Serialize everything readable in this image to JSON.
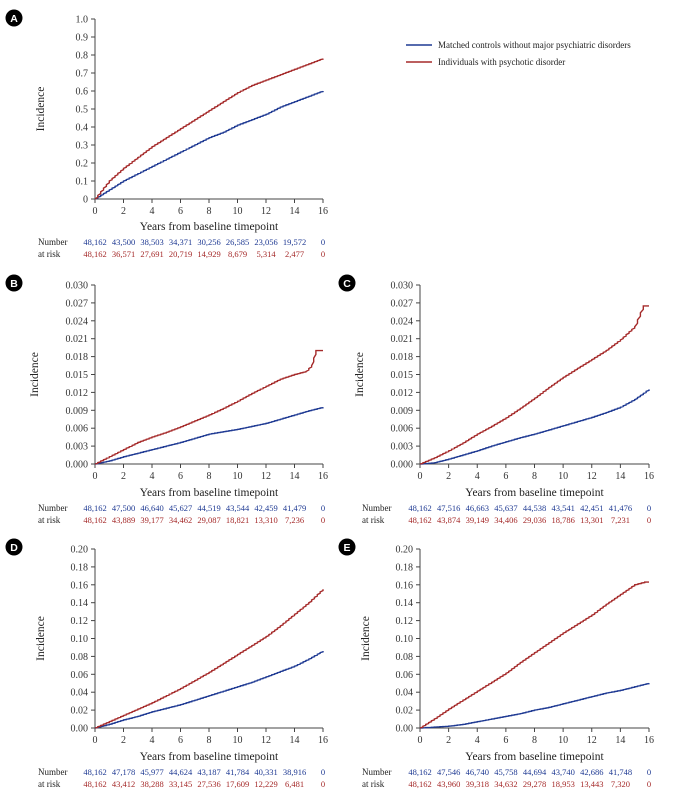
{
  "legend": {
    "position": "top-right",
    "entries": [
      {
        "label": "Matched controls without major psychiatric disorders",
        "color": "#1f3a93"
      },
      {
        "label": "Individuals with psychotic disorder",
        "color": "#a52a2a"
      }
    ]
  },
  "colors": {
    "controls": "#1f3a93",
    "psychotic": "#a52a2a",
    "axis": "#444444",
    "badge": "#000000"
  },
  "risk_table_labels": {
    "line1": "Number",
    "line2": "at risk"
  },
  "chart_data": [
    {
      "panel": "A",
      "type": "line",
      "xlabel": "Years from baseline timepoint",
      "ylabel": "Incidence",
      "xlim": [
        0,
        16
      ],
      "ylim": [
        0,
        1.0
      ],
      "xticks": [
        "0",
        "2",
        "4",
        "6",
        "8",
        "10",
        "12",
        "14",
        "16"
      ],
      "yticks": [
        "0",
        "0.1",
        "0.2",
        "0.3",
        "0.4",
        "0.5",
        "0.6",
        "0.7",
        "0.8",
        "0.9",
        "1.0"
      ],
      "series": [
        {
          "name": "Matched controls without major psychiatric disorders",
          "color": "#1f3a93",
          "x": [
            0,
            1,
            2,
            3,
            4,
            5,
            6,
            7,
            8,
            9,
            10,
            11,
            12,
            13,
            14,
            15,
            16
          ],
          "y": [
            0,
            0.05,
            0.1,
            0.14,
            0.18,
            0.22,
            0.26,
            0.3,
            0.34,
            0.37,
            0.41,
            0.44,
            0.47,
            0.51,
            0.54,
            0.57,
            0.6
          ]
        },
        {
          "name": "Individuals with psychotic disorder",
          "color": "#a52a2a",
          "x": [
            0,
            1,
            2,
            3,
            4,
            5,
            6,
            7,
            8,
            9,
            10,
            11,
            12,
            13,
            14,
            15,
            16
          ],
          "y": [
            0,
            0.1,
            0.17,
            0.23,
            0.29,
            0.34,
            0.39,
            0.44,
            0.49,
            0.54,
            0.59,
            0.63,
            0.66,
            0.69,
            0.72,
            0.75,
            0.78
          ]
        }
      ],
      "risk": {
        "controls": [
          "48,162",
          "43,500",
          "38,503",
          "34,371",
          "30,256",
          "26,585",
          "23,056",
          "19,572",
          "0"
        ],
        "psychotic": [
          "48,162",
          "36,571",
          "27,691",
          "20,719",
          "14,929",
          "8,679",
          "5,314",
          "2,477",
          "0"
        ]
      }
    },
    {
      "panel": "B",
      "type": "line",
      "xlabel": "Years from baseline timepoint",
      "ylabel": "Incidence",
      "xlim": [
        0,
        16
      ],
      "ylim": [
        0,
        0.03
      ],
      "xticks": [
        "0",
        "2",
        "4",
        "6",
        "8",
        "10",
        "12",
        "14",
        "16"
      ],
      "yticks": [
        "0.000",
        "0.003",
        "0.006",
        "0.009",
        "0.012",
        "0.015",
        "0.018",
        "0.021",
        "0.024",
        "0.027",
        "0.030"
      ],
      "series": [
        {
          "name": "Matched controls without major psychiatric disorders",
          "color": "#1f3a93",
          "x": [
            0,
            1,
            2,
            3,
            4,
            5,
            6,
            7,
            8,
            9,
            10,
            11,
            12,
            13,
            14,
            15,
            16
          ],
          "y": [
            0,
            0.0005,
            0.0012,
            0.0018,
            0.0024,
            0.003,
            0.0036,
            0.0043,
            0.005,
            0.0054,
            0.0058,
            0.0063,
            0.0068,
            0.0075,
            0.0082,
            0.0089,
            0.0095
          ]
        },
        {
          "name": "Individuals with psychotic disorder",
          "color": "#a52a2a",
          "x": [
            0,
            1,
            2,
            3,
            4,
            5,
            6,
            7,
            8,
            9,
            10,
            11,
            12,
            13,
            14,
            14.8,
            15.2,
            15.5,
            16
          ],
          "y": [
            0,
            0.0012,
            0.0024,
            0.0036,
            0.0045,
            0.0053,
            0.0062,
            0.0072,
            0.0082,
            0.0093,
            0.0105,
            0.0118,
            0.013,
            0.0142,
            0.015,
            0.0155,
            0.0165,
            0.019,
            0.019
          ]
        }
      ],
      "risk": {
        "controls": [
          "48,162",
          "47,500",
          "46,640",
          "45,627",
          "44,519",
          "43,544",
          "42,459",
          "41,479",
          "0"
        ],
        "psychotic": [
          "48,162",
          "43,889",
          "39,177",
          "34,462",
          "29,087",
          "18,821",
          "13,310",
          "7,236",
          "0"
        ]
      }
    },
    {
      "panel": "C",
      "type": "line",
      "xlabel": "Years from baseline timepoint",
      "ylabel": "Incidence",
      "xlim": [
        0,
        16
      ],
      "ylim": [
        0,
        0.03
      ],
      "xticks": [
        "0",
        "2",
        "4",
        "6",
        "8",
        "10",
        "12",
        "14",
        "16"
      ],
      "yticks": [
        "0.000",
        "0.003",
        "0.006",
        "0.009",
        "0.012",
        "0.015",
        "0.018",
        "0.021",
        "0.024",
        "0.027",
        "0.030"
      ],
      "series": [
        {
          "name": "Matched controls without major psychiatric disorders",
          "color": "#1f3a93",
          "x": [
            0,
            1,
            2,
            3,
            4,
            5,
            6,
            7,
            8,
            9,
            10,
            11,
            12,
            13,
            14,
            15,
            16
          ],
          "y": [
            0,
            0.0002,
            0.0008,
            0.0015,
            0.0022,
            0.003,
            0.0037,
            0.0044,
            0.005,
            0.0057,
            0.0064,
            0.0071,
            0.0078,
            0.0086,
            0.0095,
            0.0108,
            0.0125
          ]
        },
        {
          "name": "Individuals with psychotic disorder",
          "color": "#a52a2a",
          "x": [
            0,
            1,
            2,
            3,
            4,
            5,
            6,
            7,
            8,
            9,
            10,
            11,
            12,
            13,
            14,
            15,
            15.6,
            16
          ],
          "y": [
            0,
            0.001,
            0.0022,
            0.0035,
            0.005,
            0.0063,
            0.0077,
            0.0093,
            0.011,
            0.0128,
            0.0145,
            0.016,
            0.0175,
            0.019,
            0.0208,
            0.023,
            0.0265,
            0.0265
          ]
        }
      ],
      "risk": {
        "controls": [
          "48,162",
          "47,516",
          "46,663",
          "45,637",
          "44,538",
          "43,541",
          "42,451",
          "41,476",
          "0"
        ],
        "psychotic": [
          "48,162",
          "43,874",
          "39,149",
          "34,406",
          "29,036",
          "18,786",
          "13,301",
          "7,231",
          "0"
        ]
      }
    },
    {
      "panel": "D",
      "type": "line",
      "xlabel": "Years from baseline timepoint",
      "ylabel": "Incidence",
      "xlim": [
        0,
        16
      ],
      "ylim": [
        0,
        0.2
      ],
      "xticks": [
        "0",
        "2",
        "4",
        "6",
        "8",
        "10",
        "12",
        "14",
        "16"
      ],
      "yticks": [
        "0.00",
        "0.02",
        "0.04",
        "0.06",
        "0.08",
        "0.10",
        "0.12",
        "0.14",
        "0.16",
        "0.18",
        "0.20"
      ],
      "series": [
        {
          "name": "Matched controls without major psychiatric disorders",
          "color": "#1f3a93",
          "x": [
            0,
            1,
            2,
            3,
            4,
            5,
            6,
            7,
            8,
            9,
            10,
            11,
            12,
            13,
            14,
            15,
            16
          ],
          "y": [
            0,
            0.004,
            0.009,
            0.013,
            0.018,
            0.022,
            0.026,
            0.031,
            0.036,
            0.041,
            0.046,
            0.051,
            0.057,
            0.063,
            0.069,
            0.077,
            0.086
          ]
        },
        {
          "name": "Individuals with psychotic disorder",
          "color": "#a52a2a",
          "x": [
            0,
            1,
            2,
            3,
            4,
            5,
            6,
            7,
            8,
            9,
            10,
            11,
            12,
            13,
            14,
            15,
            16
          ],
          "y": [
            0,
            0.007,
            0.014,
            0.021,
            0.028,
            0.036,
            0.044,
            0.053,
            0.062,
            0.072,
            0.082,
            0.092,
            0.102,
            0.114,
            0.127,
            0.14,
            0.155
          ]
        }
      ],
      "risk": {
        "controls": [
          "48,162",
          "47,178",
          "45,977",
          "44,624",
          "43,187",
          "41,784",
          "40,331",
          "38,916",
          "0"
        ],
        "psychotic": [
          "48,162",
          "43,412",
          "38,288",
          "33,145",
          "27,536",
          "17,609",
          "12,229",
          "6,481",
          "0"
        ]
      }
    },
    {
      "panel": "E",
      "type": "line",
      "xlabel": "Years from baseline timepoint",
      "ylabel": "Incidence",
      "xlim": [
        0,
        16
      ],
      "ylim": [
        0,
        0.2
      ],
      "xticks": [
        "0",
        "2",
        "4",
        "6",
        "8",
        "10",
        "12",
        "14",
        "16"
      ],
      "yticks": [
        "0.00",
        "0.02",
        "0.04",
        "0.06",
        "0.08",
        "0.10",
        "0.12",
        "0.14",
        "0.16",
        "0.18",
        "0.20"
      ],
      "series": [
        {
          "name": "Matched controls without major psychiatric disorders",
          "color": "#1f3a93",
          "x": [
            0,
            1,
            2,
            3,
            4,
            5,
            6,
            7,
            8,
            9,
            10,
            11,
            12,
            13,
            14,
            15,
            16
          ],
          "y": [
            0,
            0.001,
            0.002,
            0.004,
            0.007,
            0.01,
            0.013,
            0.016,
            0.02,
            0.023,
            0.027,
            0.031,
            0.035,
            0.039,
            0.042,
            0.046,
            0.05
          ]
        },
        {
          "name": "Individuals with psychotic disorder",
          "color": "#a52a2a",
          "x": [
            0,
            1,
            2,
            3,
            4,
            5,
            6,
            7,
            8,
            9,
            10,
            11,
            12,
            13,
            14,
            15,
            15.7,
            16
          ],
          "y": [
            0,
            0.01,
            0.021,
            0.031,
            0.041,
            0.051,
            0.061,
            0.073,
            0.084,
            0.095,
            0.106,
            0.116,
            0.126,
            0.138,
            0.149,
            0.16,
            0.163,
            0.163
          ]
        }
      ],
      "risk": {
        "controls": [
          "48,162",
          "47,546",
          "46,740",
          "45,758",
          "44,694",
          "43,740",
          "42,686",
          "41,748",
          "0"
        ],
        "psychotic": [
          "48,162",
          "43,960",
          "39,318",
          "34,632",
          "29,278",
          "18,953",
          "13,443",
          "7,320",
          "0"
        ]
      }
    }
  ]
}
